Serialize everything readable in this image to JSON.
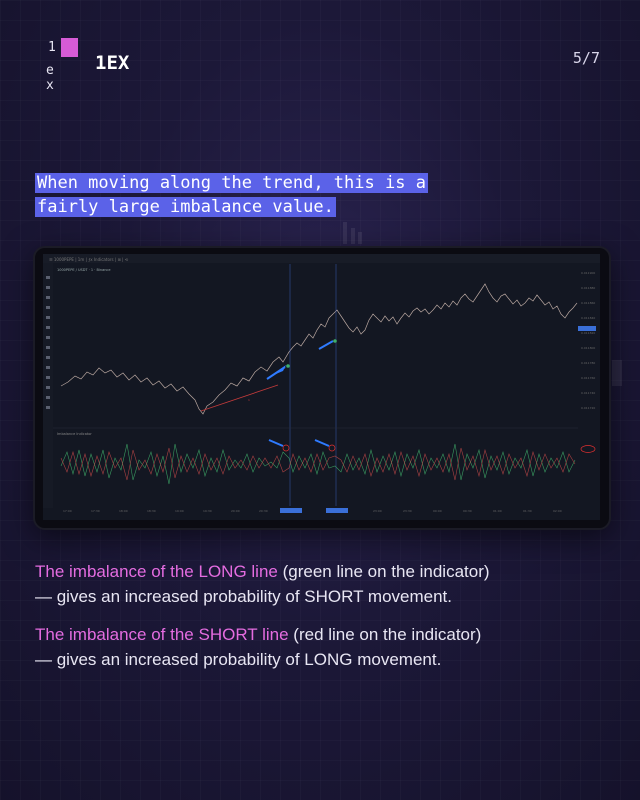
{
  "header": {
    "logo_top": "1",
    "logo_bottom": "e x",
    "brand": "1EX",
    "page_indicator": "5/7"
  },
  "headline": {
    "line1": "When moving along the trend, this is a",
    "line2": "fairly large imbalance value."
  },
  "chart_screenshot": {
    "symbol": "1000PEPE / USDT · 1 · Binance",
    "indicator_name": "Imbalance Indicator",
    "colors": {
      "price": "#b9a7a0",
      "long_line": "#3fae6a",
      "short_line": "#c04848",
      "annotation_arrow": "#2f7bff",
      "annotation_circle": "#e03030",
      "vertical_marker": "#3d5fb8"
    }
  },
  "paragraphs": [
    {
      "highlight": "The imbalance of the LONG line",
      "rest_line1": " (green line on the indicator)",
      "line2": "— gives an increased probability of SHORT movement."
    },
    {
      "highlight": "The imbalance of the SHORT line",
      "rest_line1": " (red line on the indicator)",
      "line2": "— gives an increased probability of LONG movement."
    }
  ]
}
